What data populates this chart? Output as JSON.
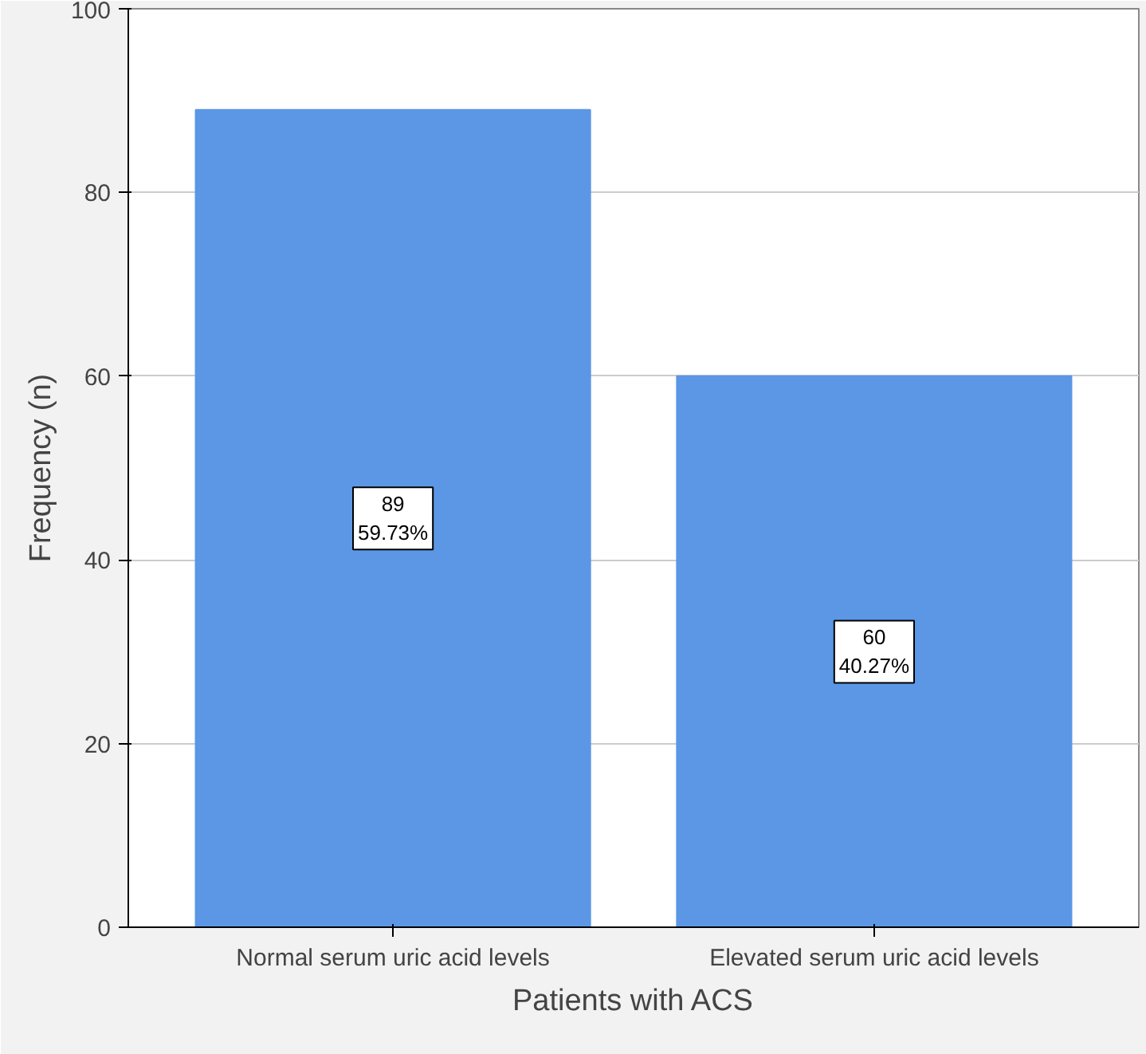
{
  "chart_data": {
    "type": "bar",
    "xlabel": "Patients with ACS",
    "ylabel": "Frequency (n)",
    "categories": [
      "Normal serum uric acid levels",
      "Elevated serum uric acid levels"
    ],
    "values": [
      89,
      60
    ],
    "color": "#5b97e5",
    "value_labels": [
      "89\n59.73%",
      "60\n40.27%"
    ],
    "ylim": [
      0,
      100
    ],
    "yticks": [
      0,
      20,
      40,
      60,
      80,
      100
    ],
    "grid": "y"
  }
}
